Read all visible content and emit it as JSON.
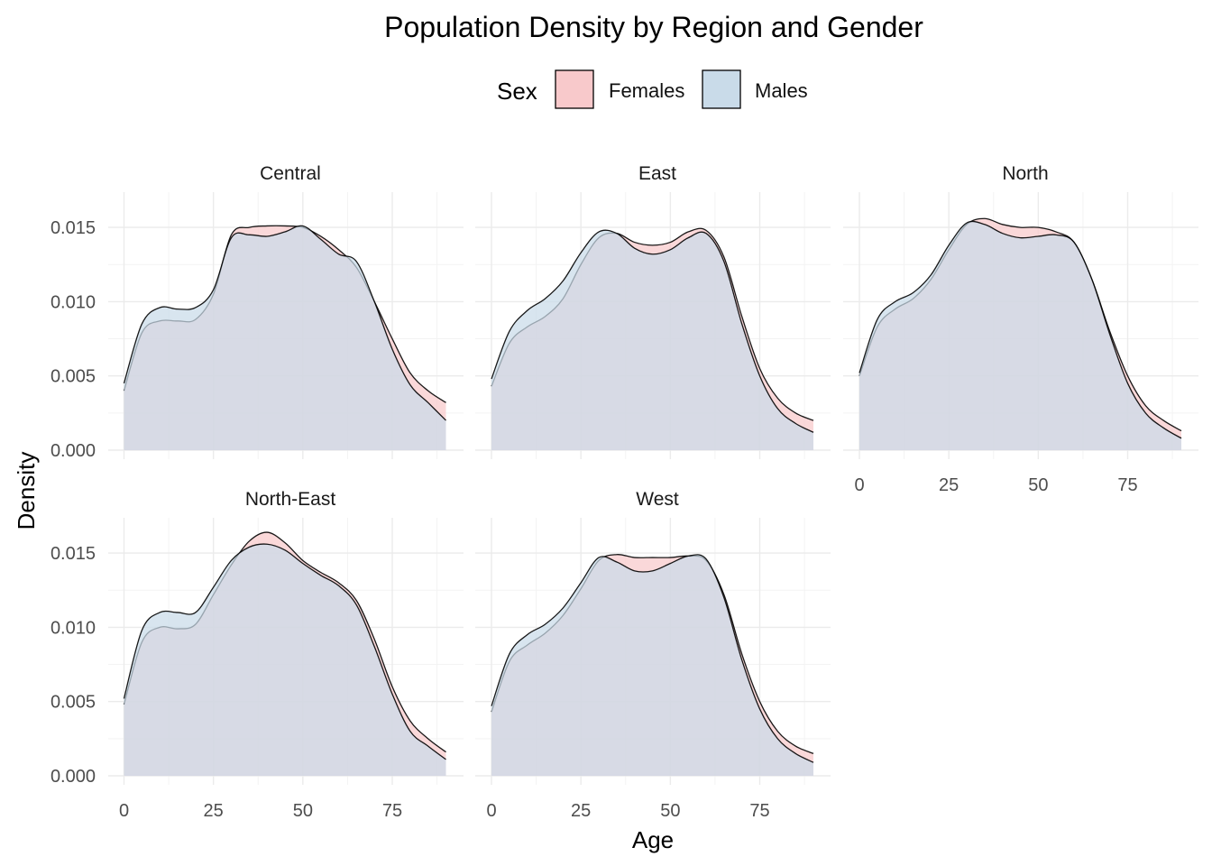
{
  "chart_data": {
    "type": "area",
    "subtype": "density",
    "title": "Population Density by Region and Gender",
    "xlabel": "Age",
    "ylabel": "Density",
    "xlim": [
      0,
      90
    ],
    "ylim": [
      0,
      0.0172
    ],
    "x_ticks": [
      0,
      25,
      50,
      75
    ],
    "y_ticks": [
      "0.000",
      "0.005",
      "0.010",
      "0.015"
    ],
    "grid": true,
    "legend": {
      "title": "Sex",
      "position": "top",
      "entries": [
        {
          "name": "Females",
          "color": "#f8c9cb"
        },
        {
          "name": "Males",
          "color": "#c9dbe9"
        }
      ]
    },
    "x": [
      0,
      5,
      10,
      15,
      20,
      25,
      30,
      35,
      40,
      45,
      50,
      55,
      60,
      65,
      70,
      75,
      80,
      85,
      90
    ],
    "panels": [
      {
        "name": "Central",
        "series": [
          {
            "name": "Females",
            "values": [
              0.004,
              0.0079,
              0.0087,
              0.0087,
              0.0088,
              0.0105,
              0.0145,
              0.015,
              0.0151,
              0.0151,
              0.015,
              0.0144,
              0.0135,
              0.0123,
              0.01,
              0.0075,
              0.0052,
              0.004,
              0.0032
            ]
          },
          {
            "name": "Males",
            "values": [
              0.0045,
              0.0085,
              0.0096,
              0.0095,
              0.0096,
              0.0108,
              0.0143,
              0.0145,
              0.0144,
              0.0147,
              0.0151,
              0.0142,
              0.0132,
              0.0127,
              0.01,
              0.0068,
              0.0044,
              0.0032,
              0.002
            ]
          }
        ]
      },
      {
        "name": "East",
        "series": [
          {
            "name": "Females",
            "values": [
              0.0043,
              0.0072,
              0.0083,
              0.009,
              0.0102,
              0.0125,
              0.0143,
              0.0146,
              0.014,
              0.0138,
              0.014,
              0.0147,
              0.0148,
              0.013,
              0.009,
              0.0055,
              0.0035,
              0.0025,
              0.002
            ]
          },
          {
            "name": "Males",
            "values": [
              0.0048,
              0.008,
              0.0094,
              0.0102,
              0.0114,
              0.0133,
              0.0147,
              0.0146,
              0.0136,
              0.0132,
              0.0135,
              0.0143,
              0.0146,
              0.0127,
              0.0085,
              0.005,
              0.0028,
              0.0018,
              0.0012
            ]
          }
        ]
      },
      {
        "name": "North",
        "series": [
          {
            "name": "Females",
            "values": [
              0.005,
              0.0083,
              0.0095,
              0.0102,
              0.0115,
              0.0135,
              0.0152,
              0.0156,
              0.0152,
              0.015,
              0.015,
              0.0147,
              0.014,
              0.0115,
              0.008,
              0.005,
              0.003,
              0.002,
              0.0013
            ]
          },
          {
            "name": "Males",
            "values": [
              0.0052,
              0.0088,
              0.01,
              0.0106,
              0.0118,
              0.0138,
              0.0153,
              0.0152,
              0.0146,
              0.0143,
              0.0144,
              0.0145,
              0.014,
              0.0115,
              0.0078,
              0.0045,
              0.0025,
              0.0015,
              0.0008
            ]
          }
        ]
      },
      {
        "name": "North-East",
        "series": [
          {
            "name": "Females",
            "values": [
              0.0048,
              0.009,
              0.01,
              0.0099,
              0.0102,
              0.0122,
              0.0142,
              0.0158,
              0.0164,
              0.0157,
              0.0145,
              0.0137,
              0.013,
              0.0118,
              0.0092,
              0.006,
              0.0037,
              0.0025,
              0.0016
            ]
          },
          {
            "name": "Males",
            "values": [
              0.0052,
              0.0098,
              0.011,
              0.011,
              0.011,
              0.0127,
              0.0145,
              0.0154,
              0.0156,
              0.0152,
              0.0143,
              0.0135,
              0.0128,
              0.0115,
              0.0087,
              0.0055,
              0.003,
              0.002,
              0.0011
            ]
          }
        ]
      },
      {
        "name": "West",
        "series": [
          {
            "name": "Females",
            "values": [
              0.0043,
              0.0077,
              0.0088,
              0.0096,
              0.0108,
              0.0126,
              0.0145,
              0.0149,
              0.0147,
              0.0147,
              0.0147,
              0.0148,
              0.0145,
              0.0122,
              0.0082,
              0.005,
              0.003,
              0.002,
              0.0015
            ]
          },
          {
            "name": "Males",
            "values": [
              0.0047,
              0.0082,
              0.0095,
              0.0102,
              0.0113,
              0.013,
              0.0147,
              0.0144,
              0.0138,
              0.0138,
              0.0143,
              0.0148,
              0.0146,
              0.012,
              0.0078,
              0.0045,
              0.0025,
              0.0015,
              0.0009
            ]
          }
        ]
      }
    ]
  }
}
